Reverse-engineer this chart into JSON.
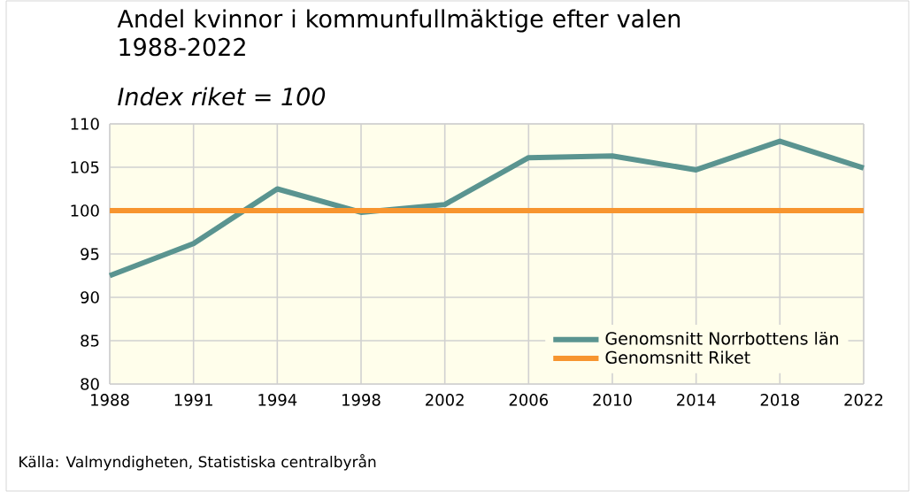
{
  "chart_data": {
    "type": "line",
    "title": "Andel kvinnor i kommunfullmäktige efter valen 1988-2022",
    "subtitle": "*Index riket = 100*",
    "categories": [
      "1988",
      "1991",
      "1994",
      "1998",
      "2002",
      "2006",
      "2010",
      "2014",
      "2018",
      "2022"
    ],
    "series": [
      {
        "name": "Genomsnitt Norrbottens län",
        "color": "#5a9490",
        "values": [
          92.5,
          96.2,
          102.5,
          99.8,
          100.7,
          106.1,
          106.3,
          104.7,
          108.0,
          104.9
        ]
      },
      {
        "name": "Genomsnitt Riket",
        "color": "#f7952f",
        "values": [
          100,
          100,
          100,
          100,
          100,
          100,
          100,
          100,
          100,
          100
        ]
      }
    ],
    "ylim": [
      80,
      110
    ],
    "yticks": [
      80,
      85,
      90,
      95,
      100,
      105,
      110
    ],
    "grid": true,
    "legend": "bottom right",
    "marker": "none",
    "line_style": "solid",
    "annotations": [
      "Källa: Valmyndigheten, Statistiska centralbyrån"
    ]
  }
}
